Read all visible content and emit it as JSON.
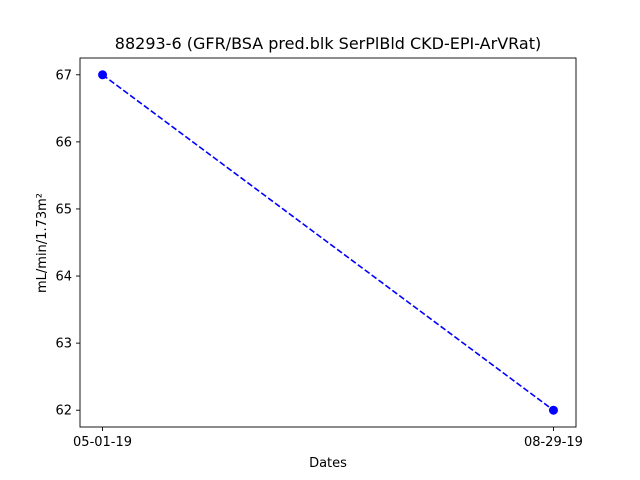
{
  "chart_data": {
    "type": "line",
    "title": "88293-6 (GFR/BSA pred.blk SerPlBld CKD-EPI-ArVRat)",
    "xlabel": "Dates",
    "ylabel": "mL/min/1.73m²",
    "x": [
      "05-01-19",
      "08-29-19"
    ],
    "series": [
      {
        "values": [
          67,
          62
        ],
        "color": "#0000ff",
        "line_style": "dashed",
        "marker": "circle"
      }
    ],
    "ylim": [
      61.75,
      67.25
    ],
    "yticks": [
      62,
      63,
      64,
      65,
      66,
      67
    ],
    "grid": false,
    "legend": "none"
  }
}
